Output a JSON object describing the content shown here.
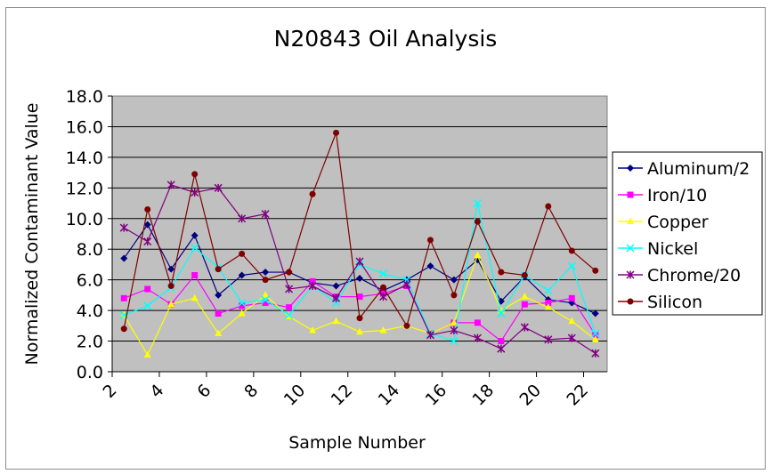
{
  "chart_data": {
    "type": "line",
    "title": "N20843 Oil Analysis",
    "xlabel": "Sample Number",
    "ylabel": "Normalized Contaminant Value",
    "xlim": [
      2,
      23
    ],
    "ylim": [
      0,
      18
    ],
    "x_ticks": [
      "2",
      "4",
      "6",
      "8",
      "10",
      "12",
      "14",
      "16",
      "18",
      "20",
      "22"
    ],
    "y_ticks": [
      "0.0",
      "2.0",
      "4.0",
      "6.0",
      "8.0",
      "10.0",
      "12.0",
      "14.0",
      "16.0",
      "18.0"
    ],
    "grid": "horizontal",
    "plot_background": "#c0c0c0",
    "legend_position": "right",
    "x": [
      2.5,
      3.5,
      4.5,
      5.5,
      6.5,
      7.5,
      8.5,
      9.5,
      10.5,
      11.5,
      12.5,
      13.5,
      14.5,
      15.5,
      16.5,
      17.5,
      18.5,
      19.5,
      20.5,
      21.5,
      22.5
    ],
    "series": [
      {
        "name": "Aluminum/2",
        "color": "#000080",
        "marker": "diamond",
        "values": [
          7.4,
          9.6,
          6.7,
          8.9,
          5.0,
          6.3,
          6.5,
          6.5,
          5.8,
          5.6,
          6.1,
          5.3,
          6.0,
          6.9,
          6.0,
          7.3,
          4.6,
          6.2,
          4.7,
          4.5,
          3.8
        ]
      },
      {
        "name": "Iron/10",
        "color": "#ff00ff",
        "marker": "square",
        "values": [
          4.8,
          5.4,
          4.4,
          6.3,
          3.8,
          4.3,
          4.5,
          4.2,
          5.9,
          4.9,
          4.9,
          5.1,
          5.6,
          2.5,
          3.2,
          3.2,
          2.0,
          4.4,
          4.5,
          4.8,
          2.4
        ]
      },
      {
        "name": "Copper",
        "color": "#ffff00",
        "marker": "triangle",
        "values": [
          3.7,
          1.1,
          4.4,
          4.8,
          2.5,
          3.8,
          5.0,
          3.6,
          2.7,
          3.3,
          2.6,
          2.7,
          3.0,
          2.5,
          3.2,
          7.6,
          4.0,
          4.9,
          4.2,
          3.3,
          2.1
        ]
      },
      {
        "name": "Nickel",
        "color": "#00ffff",
        "marker": "x",
        "values": [
          3.7,
          4.3,
          5.5,
          8.1,
          6.8,
          4.5,
          4.7,
          3.7,
          5.6,
          4.5,
          7.0,
          6.4,
          6.0,
          2.5,
          2.0,
          11.0,
          3.8,
          6.3,
          5.3,
          6.9,
          2.5
        ]
      },
      {
        "name": "Chrome/20",
        "color": "#800080",
        "marker": "star",
        "values": [
          9.4,
          8.5,
          12.2,
          11.7,
          12.0,
          10.0,
          10.3,
          5.4,
          5.6,
          4.8,
          7.2,
          4.9,
          5.7,
          2.4,
          2.7,
          2.2,
          1.5,
          2.9,
          2.1,
          2.2,
          1.2
        ]
      },
      {
        "name": "Silicon",
        "color": "#800000",
        "marker": "circle",
        "values": [
          2.8,
          10.6,
          5.6,
          12.9,
          6.7,
          7.7,
          6.0,
          6.5,
          11.6,
          15.6,
          3.5,
          5.5,
          3.0,
          8.6,
          5.0,
          9.8,
          6.5,
          6.3,
          10.8,
          7.9,
          6.6
        ]
      }
    ]
  }
}
